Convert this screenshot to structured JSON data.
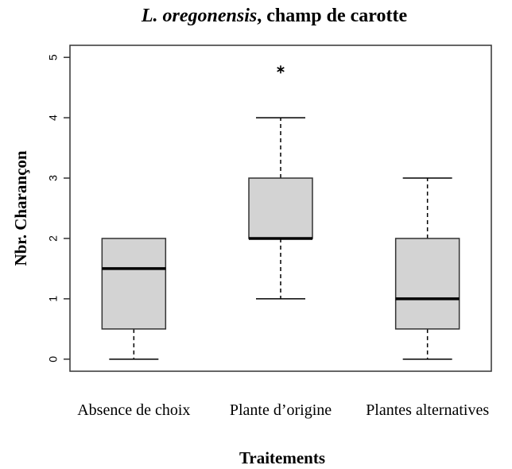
{
  "chart_data": {
    "type": "box",
    "title": [
      "L. oregonensis",
      ", champ de carotte"
    ],
    "xlabel": "Traitements",
    "ylabel": "Nbr. Charançon",
    "categories": [
      "Absence de choix",
      "Plante d’origine",
      "Plantes alternatives"
    ],
    "boxes": [
      {
        "min": 0,
        "q1": 0.5,
        "median": 1.5,
        "q3": 2,
        "max": 2,
        "outliers": []
      },
      {
        "min": 1,
        "q1": 2,
        "median": 2,
        "q3": 3,
        "max": 4,
        "outliers": [
          4.8
        ]
      },
      {
        "min": 0,
        "q1": 0.5,
        "median": 1,
        "q3": 2,
        "max": 3,
        "outliers": []
      }
    ],
    "color": "#d3d3d3",
    "ylim": [
      -0.2,
      5.2
    ],
    "yticks": [
      0,
      1,
      2,
      3,
      4,
      5
    ]
  }
}
